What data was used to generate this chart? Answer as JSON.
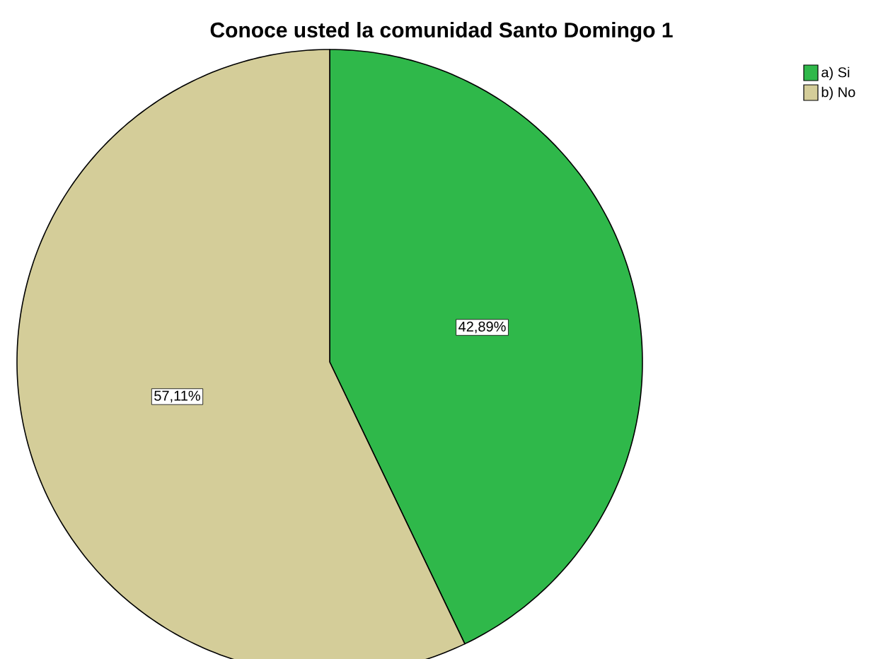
{
  "chart_data": {
    "type": "pie",
    "title": "Conoce usted la comunidad Santo Domingo 1",
    "categories": [
      "a) Si",
      "b) No"
    ],
    "values": [
      42.89,
      57.11
    ],
    "colors": [
      "#2fb84a",
      "#d4cd99"
    ],
    "value_labels": [
      "42,89%",
      "57,11%"
    ],
    "legend": "top right"
  }
}
